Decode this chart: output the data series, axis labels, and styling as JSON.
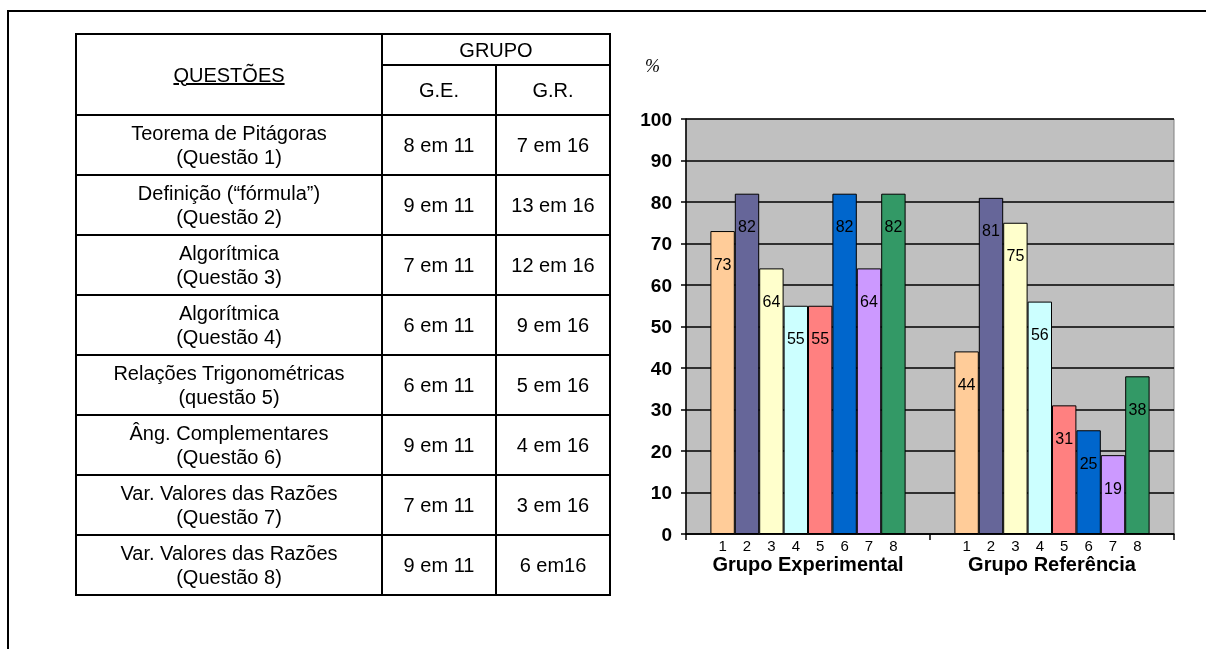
{
  "chart_data": [
    {
      "type": "other",
      "xlabel": "GRUPO",
      "ylabel": "QUESTÕES",
      "categories": [
        "G.E.",
        "G.R."
      ],
      "y_categories": [
        "Teorema de Pitágoras\n(Questão 1)",
        "Definição (“fórmula”)\n(Questão 2)",
        "Algorítmica\n(Questão 3)",
        "Algorítmica\n(Questão 4)",
        "Relações Trigonométricas\n(questão 5)",
        "Âng. Complementares\n(Questão 6)",
        "Var. Valores das Razões\n(Questão 7)",
        "Var. Valores das Razões\n(Questão 8)"
      ],
      "cell_labels": [
        [
          "8 em 11",
          "7 em 16"
        ],
        [
          "9 em 11",
          "13 em 16"
        ],
        [
          "7 em 11",
          "12 em 16"
        ],
        [
          "6 em 11",
          "9 em 16"
        ],
        [
          "6 em 11",
          "5 em 16"
        ],
        [
          "9 em 11",
          "4 em 16"
        ],
        [
          "7 em 11",
          "3 em 16"
        ],
        [
          "9 em 11",
          "6 em16"
        ]
      ]
    },
    {
      "type": "bar",
      "ylabel": "%",
      "categories": [
        "Grupo Experimental",
        "Grupo Referência"
      ],
      "series": [
        {
          "name": "1",
          "color": "#ffcc99",
          "values": [
            73,
            44
          ]
        },
        {
          "name": "2",
          "color": "#666699",
          "values": [
            82,
            81
          ]
        },
        {
          "name": "3",
          "color": "#ffffcc",
          "values": [
            64,
            75
          ]
        },
        {
          "name": "4",
          "color": "#ccffff",
          "values": [
            55,
            56
          ]
        },
        {
          "name": "5",
          "color": "#ff8080",
          "values": [
            55,
            31
          ]
        },
        {
          "name": "6",
          "color": "#0066cc",
          "values": [
            82,
            25
          ]
        },
        {
          "name": "7",
          "color": "#cc99ff",
          "values": [
            64,
            19
          ]
        },
        {
          "name": "8",
          "color": "#339966",
          "values": [
            82,
            38
          ]
        }
      ],
      "ylim": [
        0,
        100
      ],
      "yticks": [
        0,
        10,
        20,
        30,
        40,
        50,
        60,
        70,
        80,
        90,
        100
      ],
      "grid": "y",
      "data_labels": true
    }
  ]
}
